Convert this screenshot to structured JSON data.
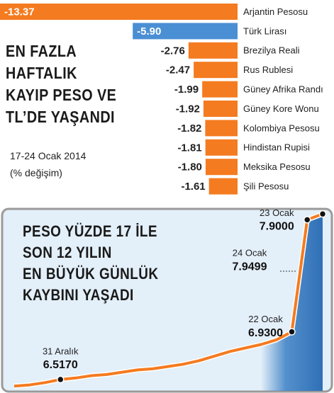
{
  "chart_data": [
    {
      "type": "bar",
      "orientation": "horizontal",
      "title": "EN FAZLA\nHAFTALIK\nKAYIP PESO VE\nTL’DE YAŞANDI",
      "subtitle": "17-24 Ocak 2014",
      "note": "(% değişim)",
      "categories": [
        "Arjantin Pesosu",
        "Türk Lirası",
        "Brezilya Reali",
        "Rus Rublesi",
        "Güney Afrika Randı",
        "Güney Kore Wonu",
        "Kolombiya Pesosu",
        "Hindistan Rupisi",
        "Meksika Pesosu",
        "Şili Pesosu"
      ],
      "values": [
        -13.37,
        -5.9,
        -2.76,
        -2.47,
        -1.99,
        -1.92,
        -1.82,
        -1.81,
        -1.8,
        -1.61
      ],
      "value_labels": [
        "-13.37",
        "-5.90",
        "-2.76",
        "-2.47",
        "-1.99",
        "-1.92",
        "-1.82",
        "-1.81",
        "-1.80",
        "-1.61"
      ],
      "colors": [
        "#f47b20",
        "#4a8fd4",
        "#f47b20",
        "#f47b20",
        "#f47b20",
        "#f47b20",
        "#f47b20",
        "#f47b20",
        "#f47b20",
        "#f47b20"
      ]
    },
    {
      "type": "line",
      "title": "PESO YÜZDE 17 İLE\nSON 12 YILIN\nEN BÜYÜK GÜNLÜK\nKAYBINI YAŞADI",
      "categories": [
        null,
        null,
        null,
        "31 Aralık",
        null,
        null,
        null,
        null,
        null,
        null,
        null,
        null,
        null,
        null,
        null,
        null,
        null,
        null,
        "22 Ocak",
        "23 Ocak",
        "24 Ocak"
      ],
      "values": [
        6.46,
        6.47,
        6.49,
        6.517,
        6.53,
        6.55,
        6.56,
        6.58,
        6.6,
        6.61,
        6.63,
        6.65,
        6.68,
        6.72,
        6.76,
        6.79,
        6.82,
        6.86,
        6.93,
        7.9,
        7.9499
      ],
      "value_labels": [
        null,
        null,
        null,
        "6.5170",
        null,
        null,
        null,
        null,
        null,
        null,
        null,
        null,
        null,
        null,
        null,
        null,
        null,
        null,
        "6.9300",
        "7.9000",
        "7.9499"
      ],
      "color": "#f47b20",
      "ylim": [
        6.4,
        8.0
      ]
    }
  ]
}
